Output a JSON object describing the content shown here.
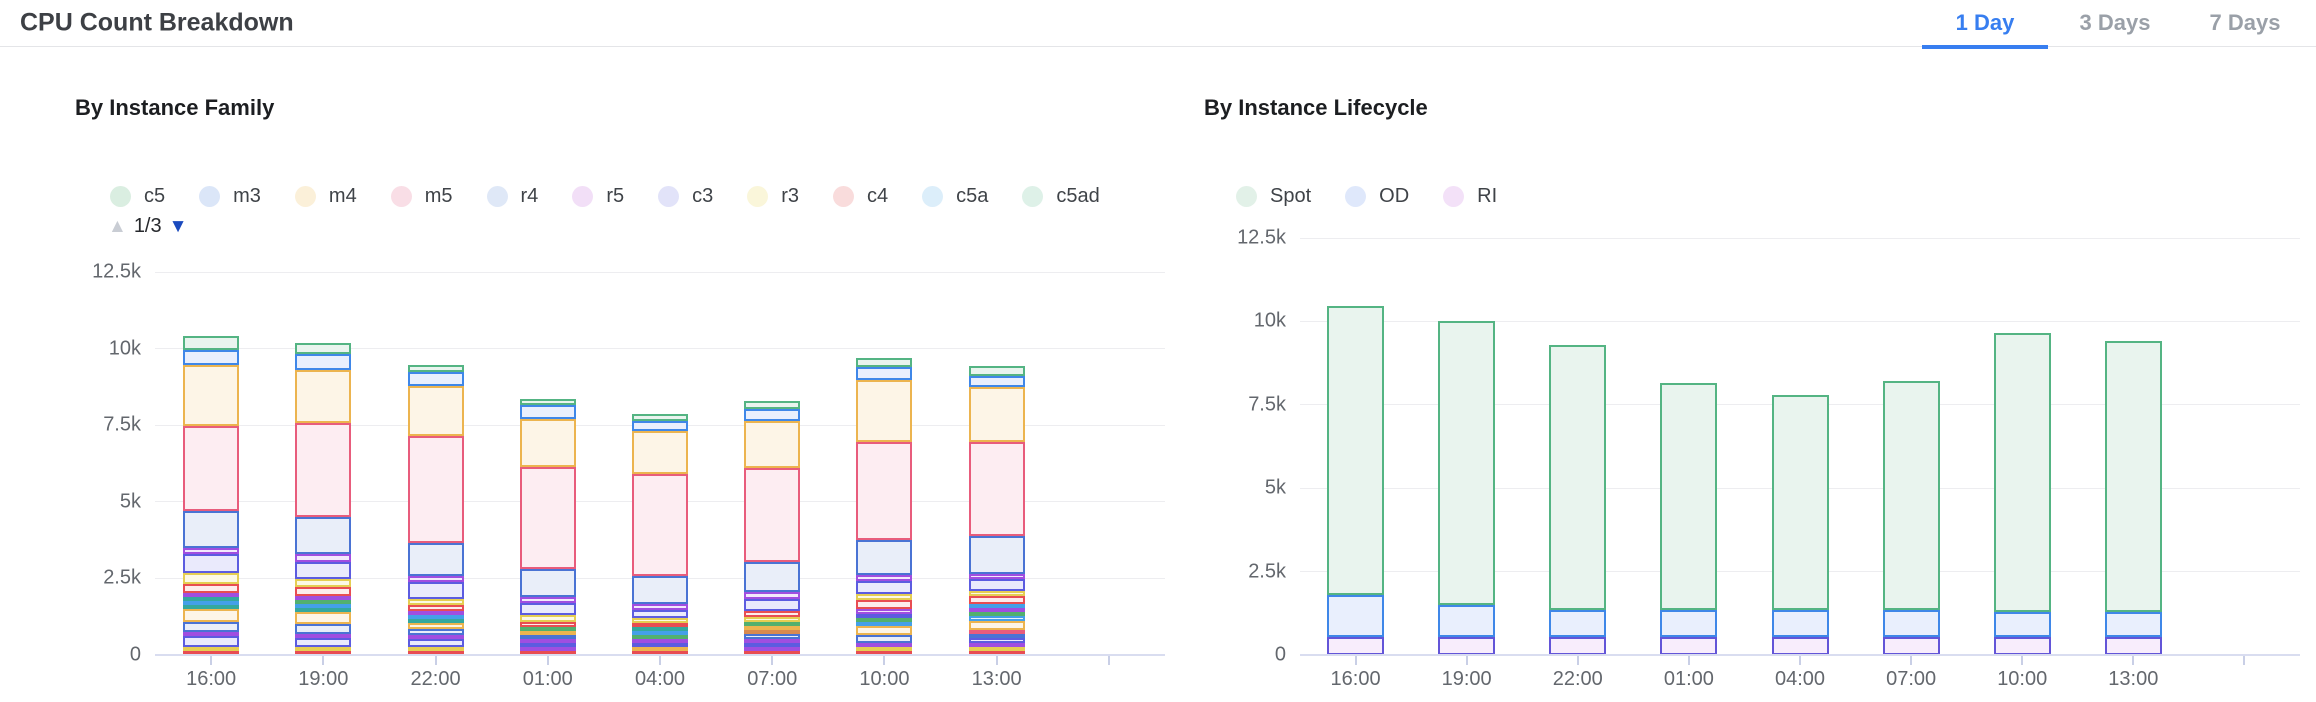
{
  "header": {
    "title": "CPU Count Breakdown",
    "tabs": [
      {
        "label": "1 Day",
        "active": true
      },
      {
        "label": "3 Days",
        "active": false
      },
      {
        "label": "7 Days",
        "active": false
      }
    ],
    "accent_color": "#377ef0"
  },
  "chart_data": [
    {
      "type": "bar",
      "stacked": true,
      "title": "By Instance Family",
      "legend": [
        {
          "name": "c5",
          "swatch": "#daeee1"
        },
        {
          "name": "m3",
          "swatch": "#dbe6f8"
        },
        {
          "name": "m4",
          "swatch": "#fbf0d9"
        },
        {
          "name": "m5",
          "swatch": "#f9dee6"
        },
        {
          "name": "r4",
          "swatch": "#dfe8f7"
        },
        {
          "name": "r5",
          "swatch": "#f2dff7"
        },
        {
          "name": "c3",
          "swatch": "#e2e3f9"
        },
        {
          "name": "r3",
          "swatch": "#faf6da"
        },
        {
          "name": "c4",
          "swatch": "#f9dcdc"
        },
        {
          "name": "c5a",
          "swatch": "#dceefa"
        },
        {
          "name": "c5ad",
          "swatch": "#def1e8"
        }
      ],
      "legend_pager": {
        "up_icon": "▲",
        "label": "1/3",
        "down_icon": "▼"
      },
      "ylim": [
        0,
        12500
      ],
      "yticks": [
        {
          "v": 0,
          "label": "0"
        },
        {
          "v": 2500,
          "label": "2.5k"
        },
        {
          "v": 5000,
          "label": "5k"
        },
        {
          "v": 7500,
          "label": "7.5k"
        },
        {
          "v": 10000,
          "label": "10k"
        },
        {
          "v": 12500,
          "label": "12.5k"
        }
      ],
      "categories": [
        "16:00",
        "19:00",
        "22:00",
        "01:00",
        "04:00",
        "07:00",
        "10:00",
        "13:00"
      ],
      "palette": {
        "green": {
          "border": "#54b483",
          "fill": "#e9f4ee"
        },
        "blue": {
          "border": "#3f87e8",
          "fill": "#e9effd"
        },
        "amber": {
          "border": "#ecb44f",
          "fill": "#fdf5e7"
        },
        "rose": {
          "border": "#e85c7c",
          "fill": "#fdedf2"
        },
        "steel": {
          "border": "#4a73d4",
          "fill": "#e9eef9"
        },
        "violet": {
          "border": "#a04ee0",
          "fill": "#f3e8fc"
        },
        "indigo": {
          "border": "#5c5ce0",
          "fill": "#eaeafc"
        },
        "yellow": {
          "border": "#e5ce52",
          "fill": "#fcf9e4"
        },
        "red": {
          "border": "#e84d52",
          "fill": "#fdecec"
        },
        "teal": {
          "border": "#34a89e",
          "fill": "#e7f5f4"
        },
        "sky": {
          "border": "#44a0e8",
          "fill": "#e9f3fd"
        },
        "green2": {
          "border": "#52b06e",
          "fill": "#e9f3eb"
        },
        "brown": {
          "border": "#d98a4f",
          "fill": "#faf0e6"
        }
      },
      "bars": [
        [
          [
            "red",
            90
          ],
          [
            "yellow",
            95
          ],
          [
            "indigo",
            360
          ],
          [
            "violet",
            110
          ],
          [
            "steel",
            340
          ],
          [
            "amber",
            410
          ],
          [
            "teal",
            110
          ],
          [
            "sky",
            110
          ],
          [
            "teal",
            100
          ],
          [
            "violet",
            110
          ],
          [
            "red",
            300
          ],
          [
            "yellow",
            350
          ],
          [
            "indigo",
            610
          ],
          [
            "violet",
            200
          ],
          [
            "steel",
            1210
          ],
          [
            "rose",
            2770
          ],
          [
            "amber",
            2020
          ],
          [
            "blue",
            490
          ],
          [
            "green",
            440
          ]
        ],
        [
          [
            "red",
            80
          ],
          [
            "yellow",
            80
          ],
          [
            "indigo",
            300
          ],
          [
            "violet",
            110
          ],
          [
            "steel",
            320
          ],
          [
            "amber",
            400
          ],
          [
            "teal",
            110
          ],
          [
            "sky",
            110
          ],
          [
            "green2",
            110
          ],
          [
            "violet",
            130
          ],
          [
            "red",
            300
          ],
          [
            "yellow",
            240
          ],
          [
            "indigo",
            570
          ],
          [
            "violet",
            240
          ],
          [
            "steel",
            1210
          ],
          [
            "rose",
            3080
          ],
          [
            "amber",
            1720
          ],
          [
            "blue",
            540
          ],
          [
            "green",
            340
          ]
        ],
        [
          [
            "red",
            80
          ],
          [
            "yellow",
            80
          ],
          [
            "indigo",
            270
          ],
          [
            "violet",
            110
          ],
          [
            "steel",
            180
          ],
          [
            "amber",
            220
          ],
          [
            "teal",
            100
          ],
          [
            "sky",
            110
          ],
          [
            "violet",
            110
          ],
          [
            "red",
            190
          ],
          [
            "yellow",
            200
          ],
          [
            "indigo",
            540
          ],
          [
            "violet",
            210
          ],
          [
            "steel",
            1050
          ],
          [
            "rose",
            3500
          ],
          [
            "amber",
            1640
          ],
          [
            "blue",
            460
          ],
          [
            "green",
            220
          ]
        ],
        [
          [
            "red",
            60
          ],
          [
            "violet",
            110
          ],
          [
            "indigo",
            110
          ],
          [
            "violet",
            110
          ],
          [
            "steel",
            110
          ],
          [
            "amber",
            110
          ],
          [
            "green2",
            110
          ],
          [
            "red",
            180
          ],
          [
            "yellow",
            220
          ],
          [
            "indigo",
            370
          ],
          [
            "violet",
            200
          ],
          [
            "steel",
            930
          ],
          [
            "rose",
            3310
          ],
          [
            "amber",
            1570
          ],
          [
            "blue",
            460
          ],
          [
            "green",
            210
          ]
        ],
        [
          [
            "red",
            60
          ],
          [
            "amber",
            110
          ],
          [
            "indigo",
            110
          ],
          [
            "violet",
            110
          ],
          [
            "green2",
            110
          ],
          [
            "sky",
            110
          ],
          [
            "teal",
            110
          ],
          [
            "red",
            140
          ],
          [
            "yellow",
            140
          ],
          [
            "indigo",
            290
          ],
          [
            "violet",
            190
          ],
          [
            "steel",
            910
          ],
          [
            "rose",
            3310
          ],
          [
            "amber",
            1420
          ],
          [
            "blue",
            330
          ],
          [
            "green",
            220
          ]
        ],
        [
          [
            "red",
            60
          ],
          [
            "violet",
            140
          ],
          [
            "indigo",
            110
          ],
          [
            "violet",
            110
          ],
          [
            "steel",
            140
          ],
          [
            "brown",
            110
          ],
          [
            "amber",
            140
          ],
          [
            "green2",
            140
          ],
          [
            "yellow",
            170
          ],
          [
            "red",
            180
          ],
          [
            "indigo",
            400
          ],
          [
            "violet",
            220
          ],
          [
            "steel",
            1000
          ],
          [
            "rose",
            3060
          ],
          [
            "amber",
            1540
          ],
          [
            "blue",
            380
          ],
          [
            "green",
            260
          ]
        ],
        [
          [
            "red",
            80
          ],
          [
            "yellow",
            100
          ],
          [
            "violet",
            110
          ],
          [
            "steel",
            270
          ],
          [
            "amber",
            290
          ],
          [
            "sky",
            140
          ],
          [
            "green2",
            130
          ],
          [
            "indigo",
            130
          ],
          [
            "violet",
            140
          ],
          [
            "red",
            290
          ],
          [
            "yellow",
            200
          ],
          [
            "indigo",
            430
          ],
          [
            "violet",
            210
          ],
          [
            "steel",
            1130
          ],
          [
            "rose",
            3200
          ],
          [
            "amber",
            2040
          ],
          [
            "blue",
            410
          ],
          [
            "green",
            290
          ]
        ],
        [
          [
            "red",
            60
          ],
          [
            "yellow",
            110
          ],
          [
            "violet",
            140
          ],
          [
            "indigo",
            140
          ],
          [
            "steel",
            150
          ],
          [
            "rose",
            140
          ],
          [
            "amber",
            290
          ],
          [
            "sky",
            140
          ],
          [
            "green2",
            130
          ],
          [
            "violet",
            130
          ],
          [
            "sky",
            120
          ],
          [
            "red",
            280
          ],
          [
            "yellow",
            150
          ],
          [
            "indigo",
            390
          ],
          [
            "violet",
            180
          ],
          [
            "steel",
            1220
          ],
          [
            "rose",
            3090
          ],
          [
            "amber",
            1780
          ],
          [
            "blue",
            360
          ],
          [
            "green",
            340
          ]
        ]
      ]
    },
    {
      "type": "bar",
      "stacked": true,
      "title": "By Instance Lifecycle",
      "legend": [
        {
          "name": "Spot",
          "swatch": "#e2f1e8"
        },
        {
          "name": "OD",
          "swatch": "#dfe8fb"
        },
        {
          "name": "RI",
          "swatch": "#f3e1f8"
        }
      ],
      "ylim": [
        0,
        12500
      ],
      "yticks": [
        {
          "v": 0,
          "label": "0"
        },
        {
          "v": 2500,
          "label": "2.5k"
        },
        {
          "v": 5000,
          "label": "5k"
        },
        {
          "v": 7500,
          "label": "7.5k"
        },
        {
          "v": 10000,
          "label": "10k"
        },
        {
          "v": 12500,
          "label": "12.5k"
        }
      ],
      "categories": [
        "16:00",
        "19:00",
        "22:00",
        "01:00",
        "04:00",
        "07:00",
        "10:00",
        "13:00"
      ],
      "series": [
        {
          "name": "RI",
          "border": "#6355d8",
          "fill": "#f8edfc",
          "values": [
            550,
            550,
            550,
            550,
            550,
            550,
            550,
            550
          ]
        },
        {
          "name": "OD",
          "border": "#3f87e8",
          "fill": "#e9effd",
          "values": [
            1250,
            950,
            800,
            800,
            800,
            800,
            750,
            750
          ]
        },
        {
          "name": "Spot",
          "border": "#54b483",
          "fill": "#e9f4ee",
          "values": [
            8650,
            8500,
            7950,
            6800,
            6450,
            6850,
            8350,
            8100
          ]
        }
      ]
    }
  ]
}
